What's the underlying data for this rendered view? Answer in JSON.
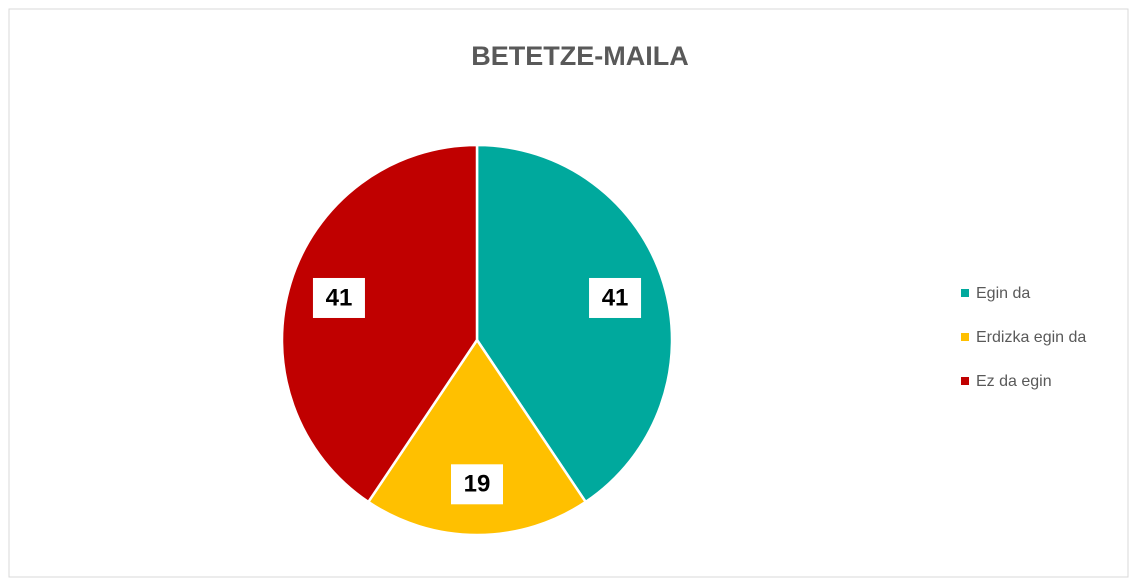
{
  "chart_data": {
    "type": "pie",
    "title": "BETETZE-MAILA",
    "categories": [
      "Egin da",
      "Erdizka egin da",
      "Ez da egin"
    ],
    "values": [
      41,
      19,
      41
    ],
    "colors": [
      "#00a99d",
      "#ffc000",
      "#c00000"
    ],
    "legend": "right"
  }
}
